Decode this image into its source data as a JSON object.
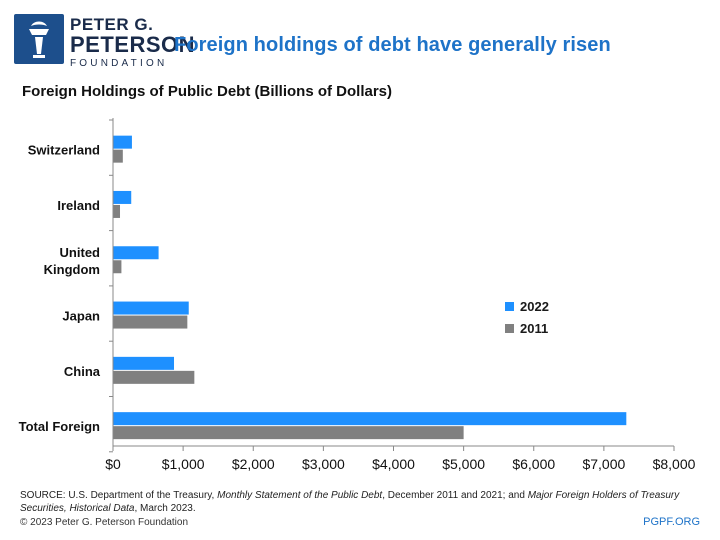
{
  "header": {
    "logo_line1": "PETER G.",
    "logo_line2": "PETERSON",
    "logo_line3": "FOUNDATION",
    "headline": "Foreign holdings of debt have generally risen"
  },
  "chart_title": "Foreign Holdings of Public Debt (Billions of Dollars)",
  "chart_data": {
    "type": "bar",
    "orientation": "horizontal",
    "categories": [
      "Switzerland",
      "Ireland",
      "United Kingdom",
      "Japan",
      "China",
      "Total Foreign"
    ],
    "category_labels": [
      [
        "Switzerland"
      ],
      [
        "Ireland"
      ],
      [
        "United",
        "Kingdom"
      ],
      [
        "Japan"
      ],
      [
        "China"
      ],
      [
        "Total Foreign"
      ]
    ],
    "series": [
      {
        "name": "2022",
        "color": "#1e90ff",
        "values": [
          270,
          260,
          650,
          1080,
          870,
          7320
        ]
      },
      {
        "name": "2011",
        "color": "#808080",
        "values": [
          140,
          100,
          120,
          1060,
          1160,
          5000
        ]
      }
    ],
    "xlim": [
      0,
      8000
    ],
    "xticks": [
      0,
      1000,
      2000,
      3000,
      4000,
      5000,
      6000,
      7000,
      8000
    ],
    "xtick_labels": [
      "$0",
      "$1,000",
      "$2,000",
      "$3,000",
      "$4,000",
      "$5,000",
      "$6,000",
      "$7,000",
      "$8,000"
    ],
    "grid": false,
    "legend_position": "right"
  },
  "footer": {
    "source_prefix": "SOURCE: U.S. Department of the Treasury, ",
    "source_italic1": "Monthly Statement of the Public Debt",
    "source_mid": ", December 2011 and 2021; and ",
    "source_italic2": "Major Foreign Holders of Treasury Securities, Historical Data",
    "source_suffix": ", March 2023.",
    "copyright": "© 2023 Peter G. Peterson Foundation",
    "site": "PGPF.ORG"
  },
  "colors": {
    "brand_blue": "#1e73c8",
    "navy": "#1d4f8c"
  }
}
